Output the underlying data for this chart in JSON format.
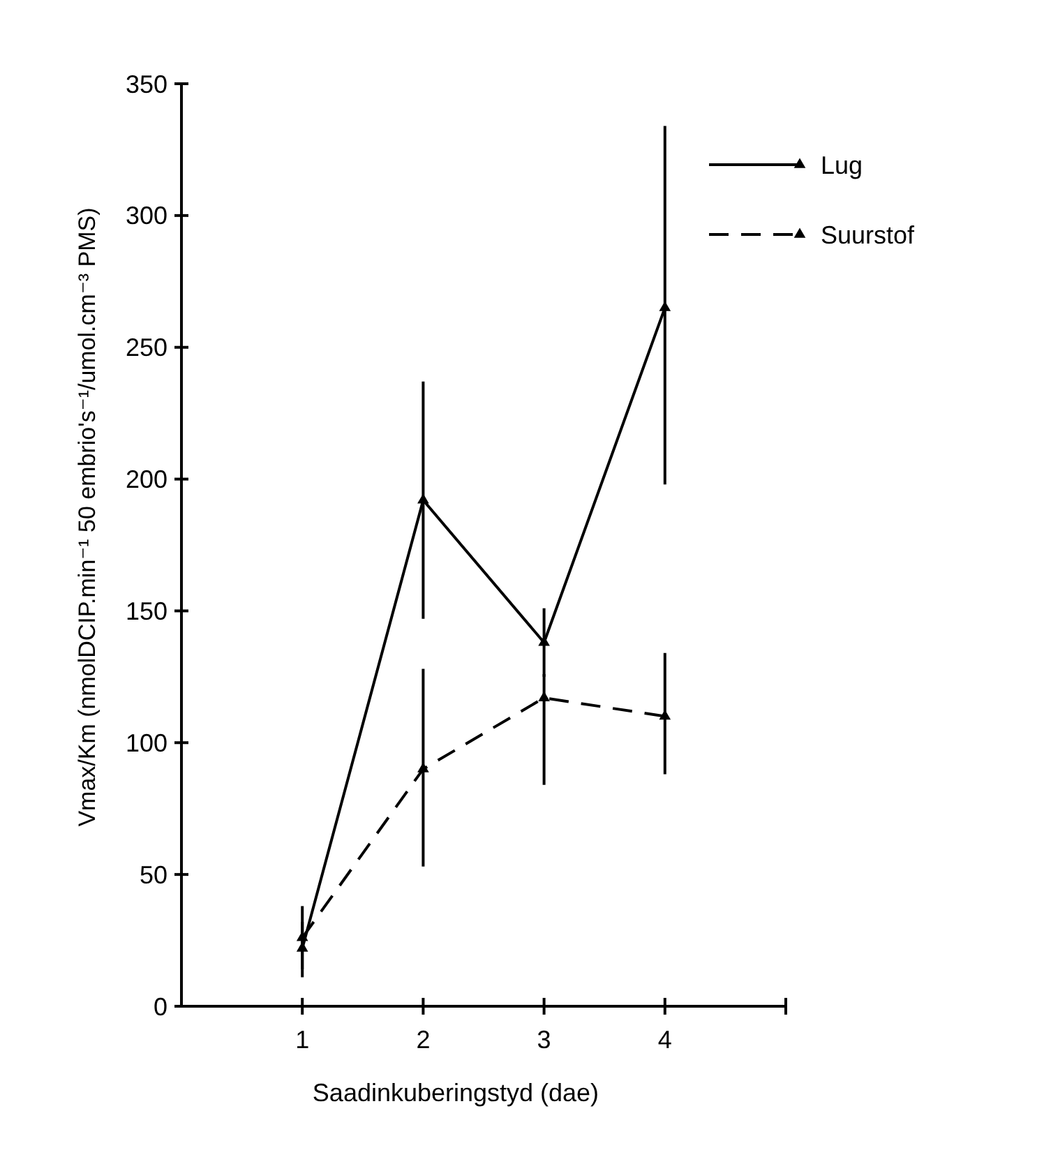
{
  "chart_data": {
    "type": "line",
    "xlabel": "Saadinkuberingstyd (dae)",
    "ylabel": "Vmax/Km (nmolDCIP.min⁻¹ 50 embrio's⁻¹/umol.cm⁻³ PMS)",
    "x": [
      1,
      2,
      3,
      4
    ],
    "xlim": [
      0,
      5
    ],
    "xticks": [
      1,
      2,
      3,
      4,
      {
        "value": 5,
        "label": null
      }
    ],
    "ylim": [
      0,
      350
    ],
    "yticks": [
      0,
      50,
      100,
      150,
      200,
      250,
      300,
      350
    ],
    "series": [
      {
        "name": "Lug",
        "color": "#000000",
        "line_style": "solid",
        "values": [
          22,
          192,
          138,
          265
        ],
        "errors": [
          [
            11,
            38
          ],
          [
            147,
            237
          ],
          [
            125,
            151
          ],
          [
            198,
            334
          ]
        ]
      },
      {
        "name": "Suurstof",
        "color": "#000000",
        "line_style": "dashed",
        "values": [
          26,
          90,
          117,
          110
        ],
        "errors": [
          [
            14,
            32
          ],
          [
            53,
            128
          ],
          [
            84,
            126
          ],
          [
            88,
            134
          ]
        ]
      }
    ],
    "marker": "triangle",
    "legend": "top right",
    "grid": false
  }
}
